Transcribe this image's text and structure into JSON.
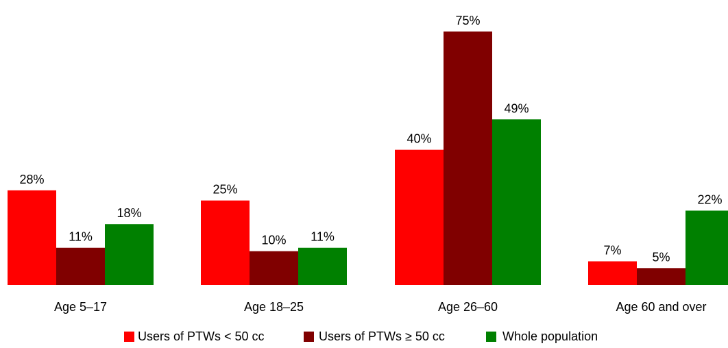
{
  "chart_data": {
    "type": "bar",
    "categories": [
      "Age 5–17",
      "Age 18–25",
      "Age 26–60",
      "Age 60 and over"
    ],
    "series": [
      {
        "name": "Users of PTWs < 50 cc",
        "values": [
          28,
          25,
          40,
          7
        ],
        "labels": [
          "28%",
          "25%",
          "40%",
          "7%"
        ],
        "color": "#ff0000"
      },
      {
        "name": "Users of PTWs ≥ 50 cc",
        "values": [
          11,
          10,
          75,
          5
        ],
        "labels": [
          "11%",
          "10%",
          "75%",
          "5%"
        ],
        "color": "#800000"
      },
      {
        "name": "Whole population",
        "values": [
          18,
          11,
          49,
          22
        ],
        "labels": [
          "18%",
          "11%",
          "49%",
          "22%"
        ],
        "color": "#008000"
      }
    ],
    "ylim": [
      0,
      75
    ],
    "grid": false,
    "legend_position": "bottom",
    "title": "",
    "xlabel": "",
    "ylabel": ""
  }
}
